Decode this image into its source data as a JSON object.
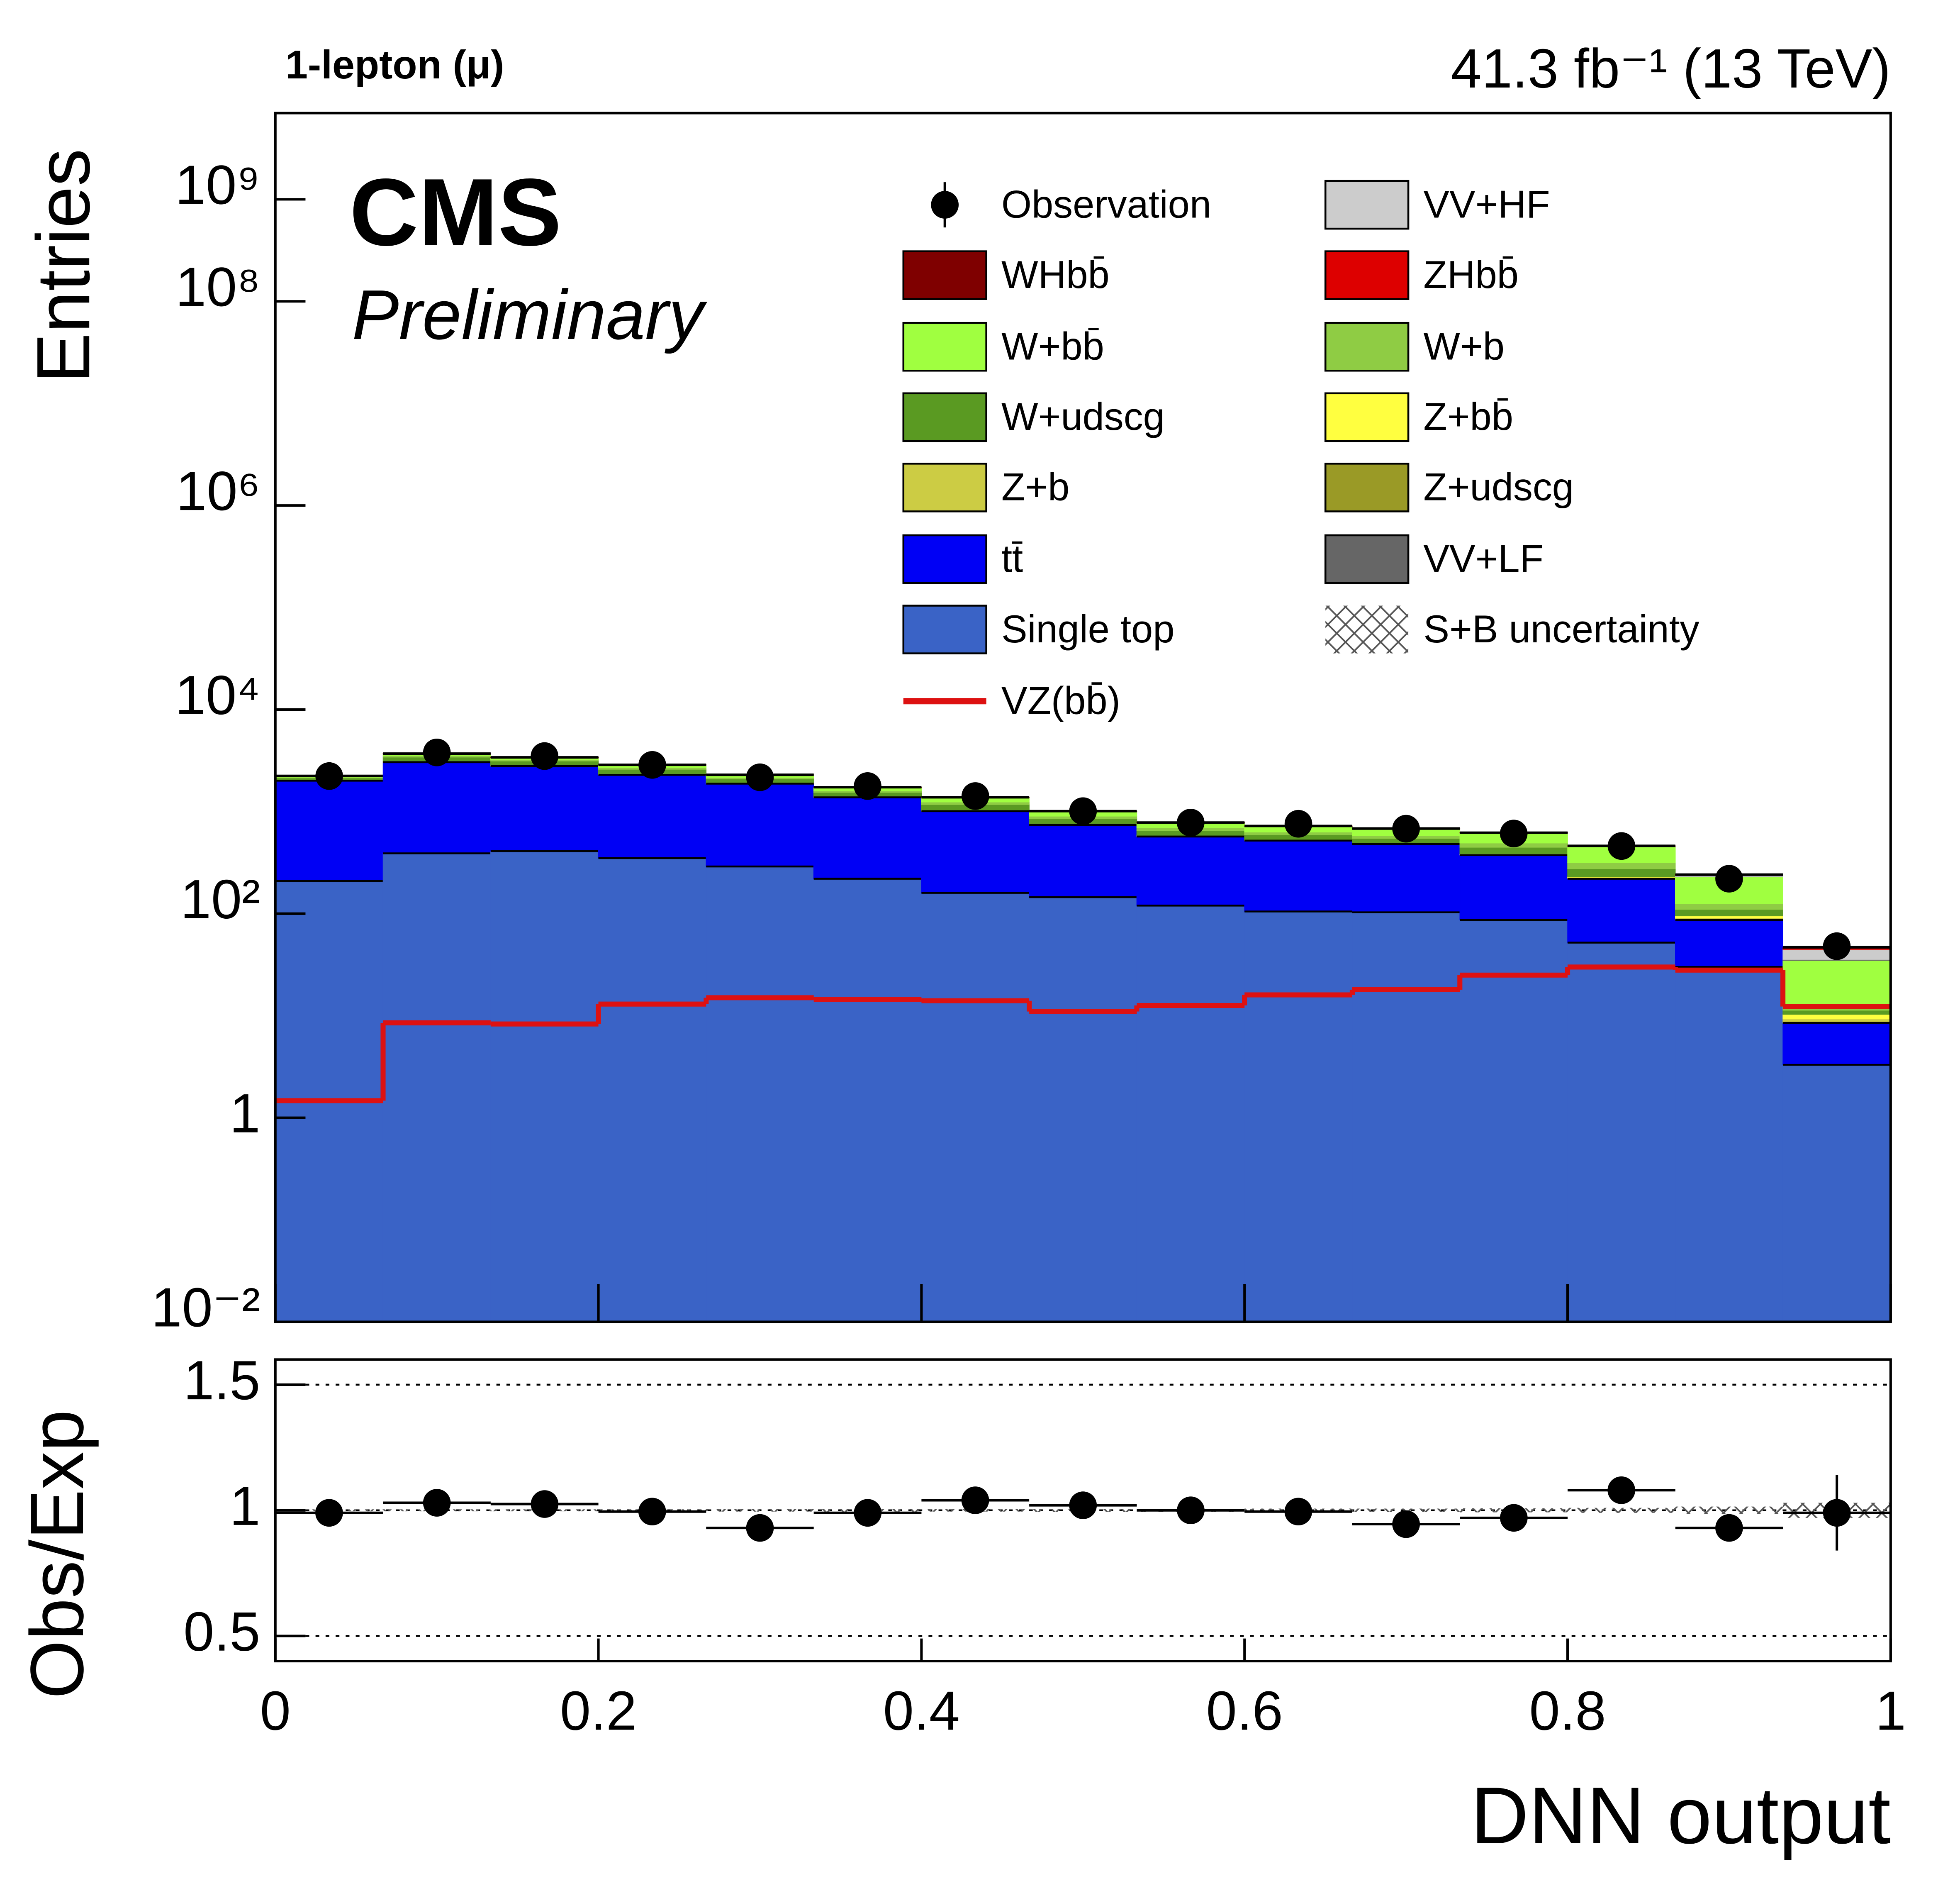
{
  "chart_data": [
    {
      "type": "stacked-histogram",
      "title": "1-lepton (μ)",
      "subtitle": "41.3 fb⁻¹ (13 TeV)",
      "experiment": "CMS",
      "status": "Preliminary",
      "y_label": "Entries",
      "log_y": true,
      "ylim": [
        0.01,
        7000000000
      ],
      "yticks": [
        {
          "value": 0.01,
          "label": "10⁻²"
        },
        1,
        {
          "value": 100,
          "label": "10²"
        },
        {
          "value": 10000,
          "label": "10⁴"
        },
        {
          "value": 1000000,
          "label": "10⁶"
        },
        {
          "value": 100000000,
          "label": "10⁸"
        },
        {
          "value": 1000000000,
          "label": "10⁹"
        }
      ],
      "xlim": [
        0,
        1
      ],
      "bins": [
        0,
        0.0667,
        0.1333,
        0.2,
        0.2667,
        0.3333,
        0.4,
        0.4667,
        0.5333,
        0.6,
        0.6667,
        0.7333,
        0.8,
        0.8667,
        0.9333,
        1
      ],
      "series": [
        {
          "name": "Single top",
          "color": "#3a63c6",
          "values": [
            209,
            390,
            410,
            350,
            290,
            220,
            160,
            145,
            120,
            105,
            103,
            87,
            52,
            30,
            3.3
          ]
        },
        {
          "name": "tt̄",
          "color": "#0000f5",
          "values": [
            1800,
            2660,
            2390,
            1940,
            1590,
            1160,
            850,
            595,
            450,
            415,
            377,
            288,
            168,
            57,
            5.2
          ]
        },
        {
          "name": "Z+udscg",
          "color": "#9a9a26",
          "values": [
            10,
            30,
            25,
            22,
            16,
            13,
            12,
            9,
            7,
            6,
            5,
            5,
            4,
            2,
            0.3
          ]
        },
        {
          "name": "Z+b",
          "color": "#cccc44",
          "values": [
            4,
            10,
            9,
            8,
            6,
            5,
            5,
            4,
            3,
            3,
            3,
            3,
            3,
            2,
            0.5
          ]
        },
        {
          "name": "Z+bb̄",
          "color": "#ffff40",
          "values": [
            3,
            8,
            7,
            7,
            5,
            5,
            5,
            4,
            3,
            3,
            3,
            4,
            4,
            4,
            1
          ]
        },
        {
          "name": "W+udscg",
          "color": "#5a9a22",
          "values": [
            110,
            320,
            290,
            270,
            180,
            140,
            140,
            95,
            70,
            60,
            55,
            60,
            45,
            15,
            1
          ]
        },
        {
          "name": "W+b",
          "color": "#8fcc44",
          "values": [
            40,
            110,
            100,
            100,
            75,
            65,
            70,
            50,
            40,
            38,
            38,
            45,
            40,
            15,
            1.5
          ]
        },
        {
          "name": "W+bb̄",
          "color": "#a0ff40",
          "values": [
            50,
            150,
            150,
            160,
            120,
            115,
            130,
            100,
            80,
            85,
            90,
            120,
            135,
            105,
            22
          ]
        },
        {
          "name": "VV+LF",
          "color": "#666666",
          "values": [
            8,
            15,
            12,
            10,
            7,
            5,
            5,
            4,
            3,
            3,
            3,
            3,
            3,
            2,
            0.8
          ]
        },
        {
          "name": "VV+HF",
          "color": "#cccccc",
          "values": [
            4,
            7,
            6,
            6,
            4,
            4,
            4,
            3,
            3,
            3,
            3,
            3,
            4,
            5,
            9
          ]
        },
        {
          "name": "ZHbb̄",
          "color": "#dd0000",
          "values": [
            0.1,
            0.2,
            0.2,
            0.3,
            0.3,
            0.3,
            0.4,
            0.4,
            0.5,
            0.5,
            0.6,
            0.8,
            1,
            1.2,
            0.8
          ]
        },
        {
          "name": "WHbb̄",
          "color": "#7f0000",
          "values": [
            0.3,
            0.5,
            0.6,
            0.7,
            0.8,
            0.9,
            1,
            1.2,
            1.4,
            1.6,
            2,
            2.5,
            3,
            3,
            1.5
          ]
        }
      ],
      "observation": {
        "name": "Observation",
        "color": "#000000",
        "values": [
          2230,
          3800,
          3500,
          2870,
          2170,
          1780,
          1420,
          1010,
          780,
          760,
          680,
          610,
          460,
          220,
          48
        ]
      },
      "signal_line": {
        "name": "VZ(bb̄)",
        "color": "#dd1111",
        "values": [
          1.47,
          8.5,
          8.3,
          13,
          15,
          14.5,
          14,
          11,
          12.6,
          16,
          18,
          25,
          30,
          28,
          12.3
        ]
      }
    },
    {
      "type": "scatter",
      "x_label": "DNN output",
      "y_label": "Obs/Exp",
      "xlim": [
        0,
        1
      ],
      "xticks": [
        0,
        0.2,
        0.4,
        0.6,
        0.8,
        1
      ],
      "ylim": [
        0.4,
        1.6
      ],
      "yticks": [
        0.5,
        1,
        1.5
      ],
      "grid": true,
      "x": [
        0.0333,
        0.1,
        0.1667,
        0.2333,
        0.3,
        0.3667,
        0.4333,
        0.5,
        0.5667,
        0.6333,
        0.7,
        0.7667,
        0.8333,
        0.9,
        0.9667
      ],
      "values": [
        0.99,
        1.03,
        1.025,
        0.995,
        0.93,
        0.99,
        1.04,
        1.02,
        1.0,
        0.995,
        0.945,
        0.97,
        1.08,
        0.93,
        0.99
      ],
      "errors": [
        0.01,
        0.01,
        0.01,
        0.01,
        0.01,
        0.01,
        0.01,
        0.01,
        0.01,
        0.01,
        0.015,
        0.015,
        0.02,
        0.03,
        0.15
      ],
      "band": {
        "name": "S+B uncertainty",
        "values": [
          0.004,
          0.004,
          0.004,
          0.004,
          0.005,
          0.005,
          0.005,
          0.006,
          0.006,
          0.007,
          0.007,
          0.008,
          0.01,
          0.015,
          0.03
        ]
      }
    }
  ]
}
